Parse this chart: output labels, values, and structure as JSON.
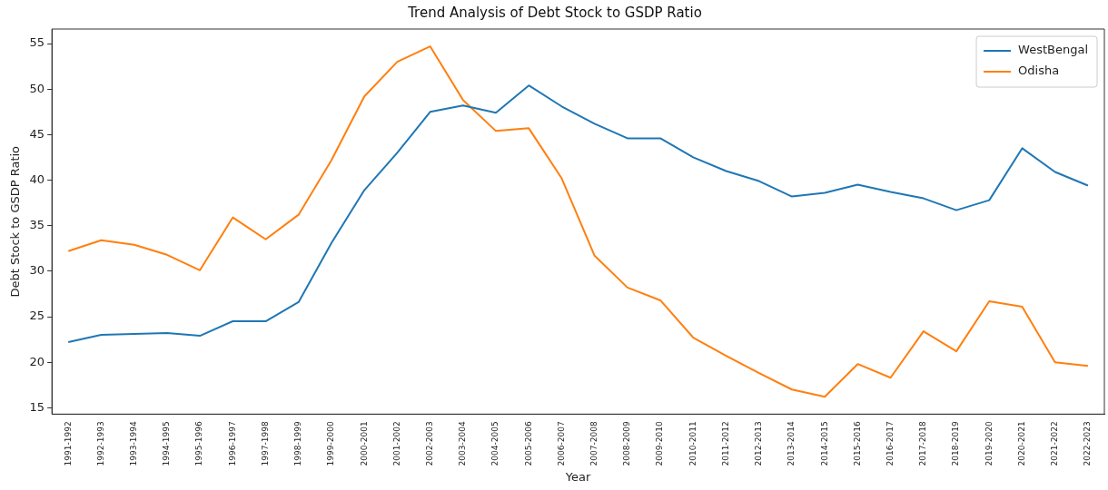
{
  "chart_data": {
    "type": "line",
    "title": "Trend Analysis of Debt Stock to GSDP Ratio",
    "xlabel": "Year",
    "ylabel": "Debt Stock to GSDP Ratio",
    "categories": [
      "1991-1992",
      "1992-1993",
      "1993-1994",
      "1994-1995",
      "1995-1996",
      "1996-1997",
      "1997-1998",
      "1998-1999",
      "1999-2000",
      "2000-2001",
      "2001-2002",
      "2002-2003",
      "2003-2004",
      "2004-2005",
      "2005-2006",
      "2006-2007",
      "2007-2008",
      "2008-2009",
      "2009-2010",
      "2010-2011",
      "2011-2012",
      "2012-2013",
      "2013-2014",
      "2014-2015",
      "2015-2016",
      "2016-2017",
      "2017-2018",
      "2018-2019",
      "2019-2020",
      "2020-2021",
      "2021-2022",
      "2022-2023"
    ],
    "series": [
      {
        "name": "WestBengal",
        "color": "#1f77b4",
        "values": [
          22.2,
          23.0,
          23.1,
          23.2,
          22.9,
          24.5,
          24.5,
          26.6,
          33.1,
          38.9,
          43.0,
          47.5,
          48.2,
          47.4,
          50.4,
          48.1,
          46.2,
          44.6,
          44.6,
          42.5,
          41.0,
          39.9,
          38.2,
          38.6,
          39.5,
          38.7,
          38.0,
          36.7,
          37.8,
          43.5,
          40.9,
          39.4
        ]
      },
      {
        "name": "Odisha",
        "color": "#ff7f0e",
        "values": [
          32.2,
          33.4,
          32.9,
          31.8,
          30.1,
          35.9,
          33.5,
          36.2,
          42.2,
          49.2,
          53.0,
          54.7,
          48.8,
          45.4,
          45.7,
          40.2,
          31.7,
          28.2,
          26.8,
          22.7,
          20.7,
          18.8,
          17.0,
          16.2,
          19.8,
          18.3,
          23.4,
          21.2,
          26.7,
          26.1,
          20.0,
          19.6
        ]
      }
    ],
    "ylim": [
      14.3,
      56.6
    ],
    "yticks": [
      15,
      20,
      25,
      30,
      35,
      40,
      45,
      50,
      55
    ],
    "grid": false,
    "legend": "top right",
    "marker": "none",
    "line_style": "solid"
  }
}
